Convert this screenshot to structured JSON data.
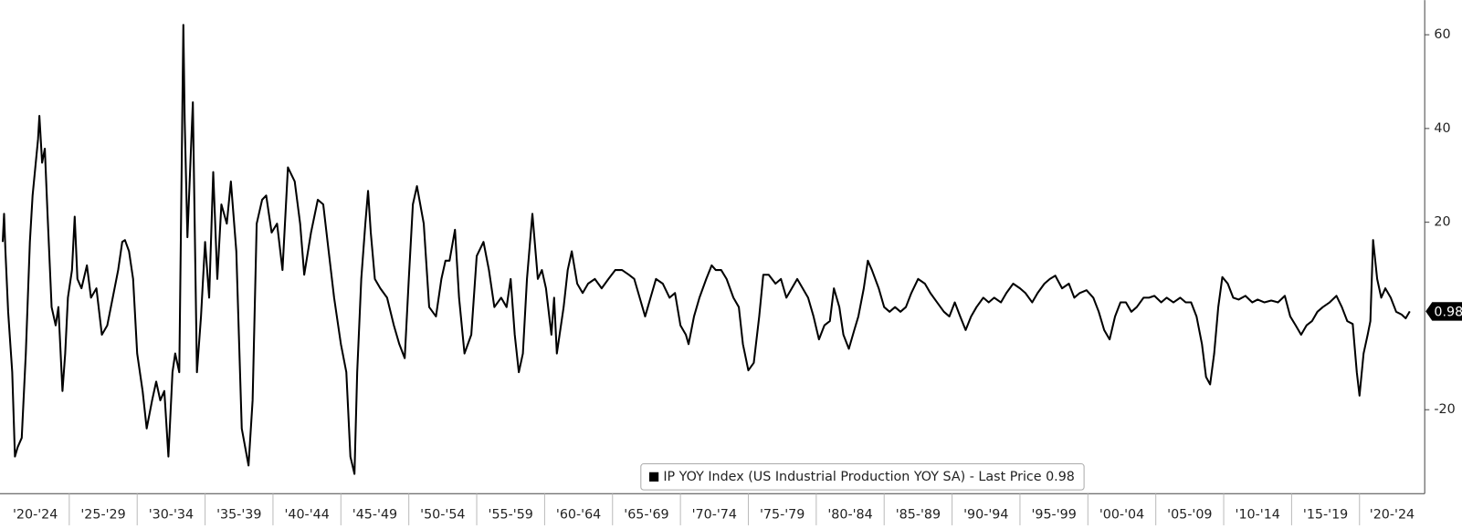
{
  "chart_data": {
    "type": "line",
    "xlim": [
      1919.9,
      2024.8
    ],
    "xticks": [
      {
        "value": 1920,
        "label": "'20-'24"
      },
      {
        "value": 1925,
        "label": "'25-'29"
      },
      {
        "value": 1930,
        "label": "'30-'34"
      },
      {
        "value": 1935,
        "label": "'35-'39"
      },
      {
        "value": 1940,
        "label": "'40-'44"
      },
      {
        "value": 1945,
        "label": "'45-'49"
      },
      {
        "value": 1950,
        "label": "'50-'54"
      },
      {
        "value": 1955,
        "label": "'55-'59"
      },
      {
        "value": 1960,
        "label": "'60-'64"
      },
      {
        "value": 1965,
        "label": "'65-'69"
      },
      {
        "value": 1970,
        "label": "'70-'74"
      },
      {
        "value": 1975,
        "label": "'75-'79"
      },
      {
        "value": 1980,
        "label": "'80-'84"
      },
      {
        "value": 1985,
        "label": "'85-'89"
      },
      {
        "value": 1990,
        "label": "'90-'94"
      },
      {
        "value": 1995,
        "label": "'95-'99"
      },
      {
        "value": 2000,
        "label": "'00-'04"
      },
      {
        "value": 2005,
        "label": "'05-'09"
      },
      {
        "value": 2010,
        "label": "'10-'14"
      },
      {
        "value": 2015,
        "label": "'15-'19"
      },
      {
        "value": 2020,
        "label": "'20-'24"
      }
    ],
    "ylim": [
      -37.9,
      67.4
    ],
    "yticks": [
      -20,
      20,
      40,
      60
    ],
    "last_value": 0.98,
    "x": [
      1920.1,
      1920.2,
      1920.3,
      1920.5,
      1920.8,
      1921.0,
      1921.2,
      1921.5,
      1921.8,
      1922.1,
      1922.3,
      1922.5,
      1922.7,
      1922.8,
      1923.0,
      1923.2,
      1923.4,
      1923.7,
      1924.0,
      1924.2,
      1924.5,
      1924.7,
      1924.9,
      1925.2,
      1925.4,
      1925.6,
      1925.9,
      1926.3,
      1926.6,
      1927.0,
      1927.4,
      1927.8,
      1928.2,
      1928.6,
      1928.9,
      1929.1,
      1929.4,
      1929.7,
      1930.0,
      1930.4,
      1930.7,
      1931.1,
      1931.4,
      1931.7,
      1932.0,
      1932.3,
      1932.6,
      1932.8,
      1933.1,
      1933.4,
      1933.5,
      1933.7,
      1934.1,
      1934.4,
      1934.7,
      1935.0,
      1935.3,
      1935.6,
      1935.9,
      1936.2,
      1936.6,
      1936.9,
      1937.3,
      1937.7,
      1938.2,
      1938.5,
      1938.8,
      1939.2,
      1939.5,
      1939.9,
      1940.3,
      1940.7,
      1941.1,
      1941.6,
      1942.0,
      1942.3,
      1942.8,
      1943.3,
      1943.7,
      1944.1,
      1944.5,
      1945.0,
      1945.4,
      1945.7,
      1946.0,
      1946.2,
      1946.5,
      1946.8,
      1947.0,
      1947.2,
      1947.5,
      1947.9,
      1948.4,
      1948.9,
      1949.3,
      1949.7,
      1950.0,
      1950.3,
      1950.6,
      1951.1,
      1951.5,
      1952.0,
      1952.4,
      1952.7,
      1953.0,
      1953.4,
      1953.7,
      1954.1,
      1954.6,
      1955.0,
      1955.5,
      1955.9,
      1956.3,
      1956.8,
      1957.2,
      1957.5,
      1957.8,
      1958.1,
      1958.4,
      1958.7,
      1959.1,
      1959.5,
      1959.8,
      1960.1,
      1960.5,
      1960.7,
      1960.9,
      1961.4,
      1961.7,
      1962.0,
      1962.4,
      1962.8,
      1963.2,
      1963.7,
      1964.2,
      1964.7,
      1965.2,
      1965.7,
      1966.2,
      1966.6,
      1967.0,
      1967.4,
      1967.8,
      1968.2,
      1968.7,
      1969.2,
      1969.6,
      1970.0,
      1970.4,
      1970.6,
      1971.0,
      1971.4,
      1971.9,
      1972.3,
      1972.6,
      1973.0,
      1973.4,
      1973.9,
      1974.3,
      1974.6,
      1975.0,
      1975.4,
      1975.8,
      1976.1,
      1976.5,
      1977.0,
      1977.4,
      1977.8,
      1978.2,
      1978.6,
      1979.0,
      1979.4,
      1979.8,
      1980.2,
      1980.6,
      1981.0,
      1981.3,
      1981.7,
      1982.0,
      1982.4,
      1982.8,
      1983.1,
      1983.5,
      1983.8,
      1984.1,
      1984.6,
      1985.0,
      1985.4,
      1985.8,
      1986.2,
      1986.6,
      1987.0,
      1987.5,
      1988.0,
      1988.4,
      1988.9,
      1989.4,
      1989.8,
      1990.2,
      1990.6,
      1991.0,
      1991.4,
      1991.8,
      1992.3,
      1992.7,
      1993.1,
      1993.6,
      1994.0,
      1994.5,
      1995.0,
      1995.4,
      1995.9,
      1996.3,
      1996.8,
      1997.2,
      1997.6,
      1998.1,
      1998.6,
      1999.0,
      1999.4,
      1999.9,
      2000.4,
      2000.8,
      2001.2,
      2001.6,
      2002.0,
      2002.4,
      2002.8,
      2003.2,
      2003.6,
      2004.1,
      2004.5,
      2004.9,
      2005.4,
      2005.8,
      2006.3,
      2006.8,
      2007.2,
      2007.6,
      2008.0,
      2008.4,
      2008.7,
      2009.0,
      2009.3,
      2009.6,
      2009.9,
      2010.3,
      2010.7,
      2011.1,
      2011.6,
      2012.1,
      2012.5,
      2013.0,
      2013.5,
      2014.0,
      2014.5,
      2014.9,
      2015.3,
      2015.7,
      2016.1,
      2016.5,
      2016.9,
      2017.3,
      2017.8,
      2018.3,
      2018.7,
      2019.1,
      2019.5,
      2019.8,
      2020.0,
      2020.3,
      2020.6,
      2020.8,
      2021.0,
      2021.3,
      2021.6,
      2021.9,
      2022.3,
      2022.7,
      2023.1,
      2023.4,
      2023.7
    ],
    "series": [
      {
        "name": "IP YOY Index (US Industrial Production YOY SA) - Last Price 0.98",
        "color": "#000000",
        "values": [
          15.8,
          21.8,
          13.8,
          0.9,
          -12,
          -30,
          -28,
          -26,
          -8,
          15.8,
          25.7,
          31.7,
          37.7,
          42.7,
          32.7,
          35.7,
          21.8,
          1.9,
          -2,
          1.9,
          -16,
          -8,
          3.9,
          9.8,
          21.2,
          7.9,
          5.9,
          10.8,
          3.9,
          5.9,
          -4,
          -2,
          3.9,
          9.8,
          15.8,
          16.2,
          13.8,
          7.9,
          -8,
          -16,
          -24,
          -18,
          -14,
          -18,
          -16,
          -30,
          -12,
          -8,
          -12,
          62.1,
          41.6,
          16.8,
          45.6,
          -12,
          -0.1,
          15.8,
          3.9,
          30.7,
          7.9,
          23.8,
          19.7,
          28.7,
          13.8,
          -24,
          -31.9,
          -18,
          19.7,
          24.8,
          25.7,
          17.8,
          19.7,
          9.8,
          31.7,
          28.7,
          19.7,
          8.8,
          17.8,
          24.8,
          23.8,
          13.8,
          3.9,
          -6,
          -12,
          -30,
          -33.7,
          -12,
          7.9,
          19.7,
          26.7,
          17.8,
          7.9,
          5.9,
          3.9,
          -2,
          -6,
          -9,
          7.9,
          23.8,
          27.7,
          19.7,
          1.9,
          -0.1,
          7.9,
          11.8,
          11.8,
          18.4,
          3.9,
          -8,
          -4,
          12.8,
          15.8,
          9.8,
          1.9,
          3.9,
          1.9,
          7.9,
          -4,
          -12,
          -8,
          7.9,
          21.8,
          7.9,
          9.8,
          5.9,
          -4,
          3.9,
          -8,
          1.9,
          9.8,
          13.8,
          6.9,
          4.9,
          6.9,
          7.9,
          5.9,
          7.9,
          9.8,
          9.8,
          8.8,
          7.9,
          3.9,
          -0.1,
          3.9,
          7.9,
          6.9,
          3.9,
          4.9,
          -2,
          -4,
          -6,
          -0.1,
          3.9,
          7.9,
          10.8,
          9.8,
          9.8,
          7.9,
          3.9,
          1.9,
          -6,
          -11.6,
          -10,
          -0.1,
          8.8,
          8.8,
          6.9,
          7.9,
          3.9,
          5.9,
          7.9,
          5.9,
          3.9,
          -0.1,
          -5,
          -2,
          -1.1,
          5.9,
          1.9,
          -4,
          -7,
          -3,
          -0.1,
          5.9,
          11.8,
          9.8,
          5.9,
          1.9,
          0.9,
          1.9,
          0.9,
          1.9,
          4.9,
          7.9,
          6.9,
          4.9,
          2.9,
          0.9,
          -0.1,
          2.9,
          -0.1,
          -3,
          -0.1,
          1.9,
          3.9,
          2.9,
          3.9,
          2.9,
          4.9,
          6.9,
          5.9,
          4.9,
          2.9,
          4.9,
          6.9,
          7.9,
          8.6,
          5.9,
          6.9,
          3.9,
          4.9,
          5.5,
          3.9,
          0.9,
          -3,
          -5,
          -0.1,
          2.9,
          2.9,
          0.9,
          1.9,
          3.9,
          3.9,
          4.3,
          2.9,
          3.9,
          2.9,
          3.9,
          2.9,
          2.9,
          -0.1,
          -6,
          -13,
          -14.6,
          -8,
          1.9,
          8.3,
          6.9,
          3.9,
          3.5,
          4.3,
          2.9,
          3.5,
          2.9,
          3.3,
          2.9,
          4.3,
          -0.1,
          -2,
          -4,
          -2,
          -1.1,
          0.9,
          1.9,
          2.9,
          4.3,
          1.9,
          -1.1,
          -1.7,
          -12,
          -17,
          -8,
          -4,
          -1.1,
          16.2,
          7.9,
          3.9,
          5.9,
          3.9,
          0.9,
          0.3,
          -0.5,
          0.98
        ]
      }
    ]
  }
}
